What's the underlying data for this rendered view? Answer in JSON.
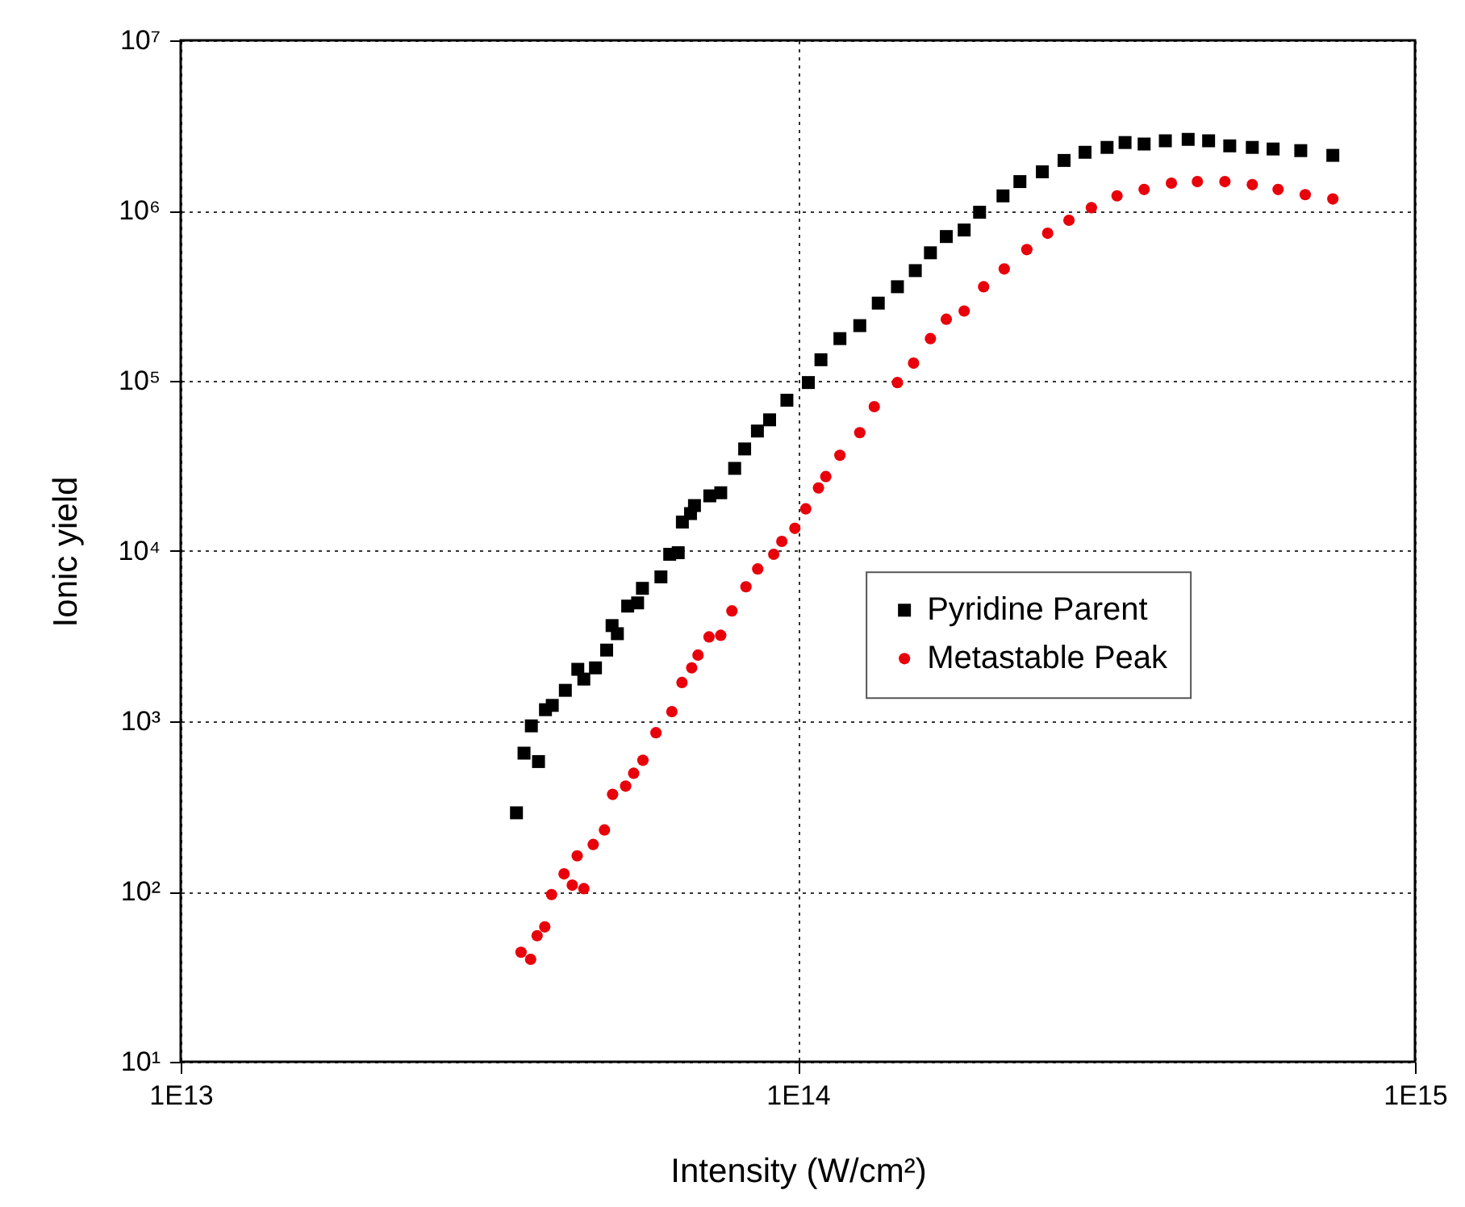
{
  "chart_data": {
    "type": "scatter",
    "xlabel": "Intensity (W/cm²)",
    "ylabel": "Ionic yield",
    "log": "xy",
    "grid": true,
    "legend": "right",
    "xlim": [
      10000000000000.0,
      1000000000000000.0
    ],
    "xticks": [
      {
        "value": 10000000000000.0,
        "label": "1E13"
      },
      {
        "value": 100000000000000.0,
        "label": "1E14"
      },
      {
        "value": 1000000000000000.0,
        "label": "1E15"
      }
    ],
    "ylim": [
      10,
      10000000
    ],
    "yticks": [
      {
        "value": 10,
        "label": "10¹"
      },
      {
        "value": 100,
        "label": "10²"
      },
      {
        "value": 1000,
        "label": "10³"
      },
      {
        "value": 10000,
        "label": "10⁴"
      },
      {
        "value": 100000,
        "label": "10⁵"
      },
      {
        "value": 1000000,
        "label": "10⁶"
      },
      {
        "value": 10000000,
        "label": "10⁷"
      }
    ],
    "series": [
      {
        "name": "Pyridine Parent",
        "color": "#000000",
        "marker": "square",
        "x": [
          35000000000000.0,
          36000000000000.0,
          38000000000000.0,
          37000000000000.0,
          39000000000000.0,
          40000000000000.0,
          42000000000000.0,
          44000000000000.0,
          45000000000000.0,
          47000000000000.0,
          49000000000000.0,
          50000000000000.0,
          51000000000000.0,
          53000000000000.0,
          55000000000000.0,
          56000000000000.0,
          60000000000000.0,
          62000000000000.0,
          64000000000000.0,
          65000000000000.0,
          67000000000000.0,
          68000000000000.0,
          72000000000000.0,
          75000000000000.0,
          79000000000000.0,
          82000000000000.0,
          86000000000000.0,
          90000000000000.0,
          96000000000000.0,
          104000000000000.0,
          109000000000000.0,
          117000000000000.0,
          126000000000000.0,
          135000000000000.0,
          145000000000000.0,
          155000000000000.0,
          164000000000000.0,
          174000000000000.0,
          186000000000000.0,
          197000000000000.0,
          215000000000000.0,
          229000000000000.0,
          249000000000000.0,
          270000000000000.0,
          292000000000000.0,
          317000000000000.0,
          339000000000000.0,
          364000000000000.0,
          394000000000000.0,
          429000000000000.0,
          463000000000000.0,
          501000000000000.0,
          545000000000000.0,
          589000000000000.0,
          653000000000000.0,
          736000000000000.0
        ],
        "values": [
          290,
          650,
          580,
          940,
          1170,
          1240,
          1520,
          2020,
          1770,
          2060,
          2620,
          3650,
          3270,
          4750,
          4960,
          6040,
          7050,
          9570,
          9780,
          14800,
          16600,
          18500,
          21100,
          22000,
          30600,
          39800,
          50700,
          59000,
          76900,
          97700,
          133000,
          177000,
          211000,
          286000,
          357000,
          444000,
          565000,
          704000,
          769000,
          978000,
          1220000,
          1480000,
          1690000,
          1970000,
          2200000,
          2350000,
          2510000,
          2460000,
          2570000,
          2620000,
          2570000,
          2400000,
          2350000,
          2300000,
          2250000,
          2110000
        ]
      },
      {
        "name": "Metastable Peak",
        "color": "#e8000b",
        "marker": "circle",
        "x": [
          35600000000000.0,
          36900000000000.0,
          37800000000000.0,
          38900000000000.0,
          39900000000000.0,
          41800000000000.0,
          43100000000000.0,
          45000000000000.0,
          43900000000000.0,
          46600000000000.0,
          48600000000000.0,
          50100000000000.0,
          52600000000000.0,
          54200000000000.0,
          56100000000000.0,
          58900000000000.0,
          62500000000000.0,
          64900000000000.0,
          67300000000000.0,
          68900000000000.0,
          71800000000000.0,
          75000000000000.0,
          78200000000000.0,
          82400000000000.0,
          86100000000000.0,
          91400000000000.0,
          94200000000000.0,
          98900000000000.0,
          103000000000000.0,
          108000000000000.0,
          111000000000000.0,
          117000000000000.0,
          126000000000000.0,
          133000000000000.0,
          145000000000000.0,
          154000000000000.0,
          164000000000000.0,
          174000000000000.0,
          186000000000000.0,
          200000000000000.0,
          216000000000000.0,
          235000000000000.0,
          254000000000000.0,
          275000000000000.0,
          299000000000000.0,
          329000000000000.0,
          364000000000000.0,
          403000000000000.0,
          444000000000000.0,
          492000000000000.0,
          545000000000000.0,
          600000000000000.0,
          664000000000000.0,
          736000000000000.0
        ],
        "values": [
          44,
          40,
          55,
          62,
          96,
          127,
          109,
          104,
          162,
          189,
          230,
          372,
          416,
          495,
          590,
          857,
          1140,
          1690,
          2060,
          2450,
          3130,
          3200,
          4450,
          6170,
          7850,
          9570,
          11400,
          13600,
          17700,
          23500,
          27400,
          36500,
          49600,
          70500,
          97700,
          127000,
          177000,
          230000,
          257000,
          357000,
          454000,
          590000,
          736000,
          877000,
          1040000,
          1220000,
          1330000,
          1450000,
          1480000,
          1480000,
          1420000,
          1330000,
          1240000,
          1170000
        ]
      }
    ]
  }
}
